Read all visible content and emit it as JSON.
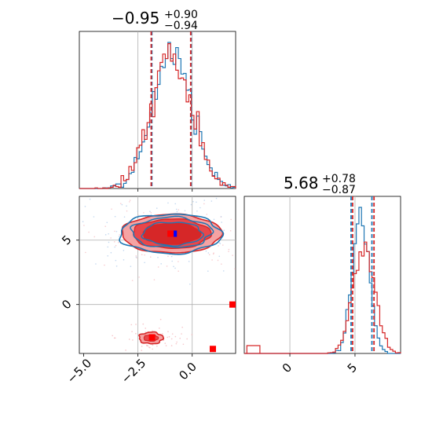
{
  "colors": {
    "blue": "#1f77b4",
    "red": "#d62728",
    "red_light": "#f5a3a3",
    "red_mid": "#e8474a",
    "grid": "#b0b0b0",
    "blue_marker": "#0000ff",
    "red_marker": "#ff0000"
  },
  "chart_data": [
    {
      "type": "histogram",
      "panel": "top-left",
      "title": {
        "value": "−0.95",
        "plus": "+0.90",
        "minus": "−0.94"
      },
      "xlim": [
        -5.2,
        2.0
      ],
      "series": [
        {
          "name": "",
          "color": "blue",
          "mean": -0.92,
          "sd": 0.9,
          "quantiles": [
            -1.86,
            -0.05
          ]
        },
        {
          "name": "",
          "color": "red",
          "mean": -0.97,
          "sd": 0.92,
          "quantiles": [
            -1.89,
            -0.07
          ]
        }
      ],
      "grid_x": [
        -2.5,
        0.0
      ]
    },
    {
      "type": "histogram",
      "panel": "bottom-right",
      "title": {
        "value": "5.68",
        "plus": "+0.78",
        "minus": "−0.87"
      },
      "xlim": [
        -3.5,
        8.5
      ],
      "x_ticks": [
        {
          "value": 0,
          "label": "0"
        },
        {
          "value": 5,
          "label": "5"
        }
      ],
      "series": [
        {
          "name": "",
          "color": "blue",
          "mean": 5.45,
          "sd": 0.65,
          "quantiles": [
            4.7,
            6.3
          ]
        },
        {
          "name": "",
          "color": "red",
          "mean": 5.68,
          "sd": 0.82,
          "quantiles": [
            4.82,
            6.46
          ]
        }
      ],
      "red_bump": {
        "x": [
          -3.3,
          -2.3
        ],
        "height_fraction": 0.05
      },
      "grid_x": [
        0,
        5
      ]
    },
    {
      "type": "contour",
      "panel": "bottom-left",
      "xlim": [
        -5.2,
        2.0
      ],
      "ylim": [
        -3.8,
        8.4
      ],
      "x_ticks": [
        {
          "value": -5.0,
          "label": "−5.0"
        },
        {
          "value": -2.5,
          "label": "−2.5"
        },
        {
          "value": 0.0,
          "label": "0.0"
        }
      ],
      "y_ticks": [
        {
          "value": 0,
          "label": "0"
        },
        {
          "value": 5,
          "label": "5"
        }
      ],
      "grid_x": [
        -2.5,
        0.0
      ],
      "grid_y": [
        0,
        5
      ],
      "main_cluster": {
        "x": -0.95,
        "y": 5.5,
        "rx": 2.3,
        "ry": 1.5
      },
      "secondary_cluster": {
        "x": -1.9,
        "y": -2.6,
        "rx": 0.55,
        "ry": 0.45
      },
      "markers": [
        {
          "x": -0.85,
          "y": 5.5,
          "color": "blue_marker"
        },
        {
          "x": -1.0,
          "y": 5.5,
          "color": "red_marker"
        },
        {
          "x": -1.85,
          "y": -2.55,
          "color": "red_marker"
        },
        {
          "x": 0.95,
          "y": -3.45,
          "color": "red_marker"
        },
        {
          "x": 2.0,
          "y": 0.0,
          "color": "red_marker"
        }
      ]
    }
  ]
}
